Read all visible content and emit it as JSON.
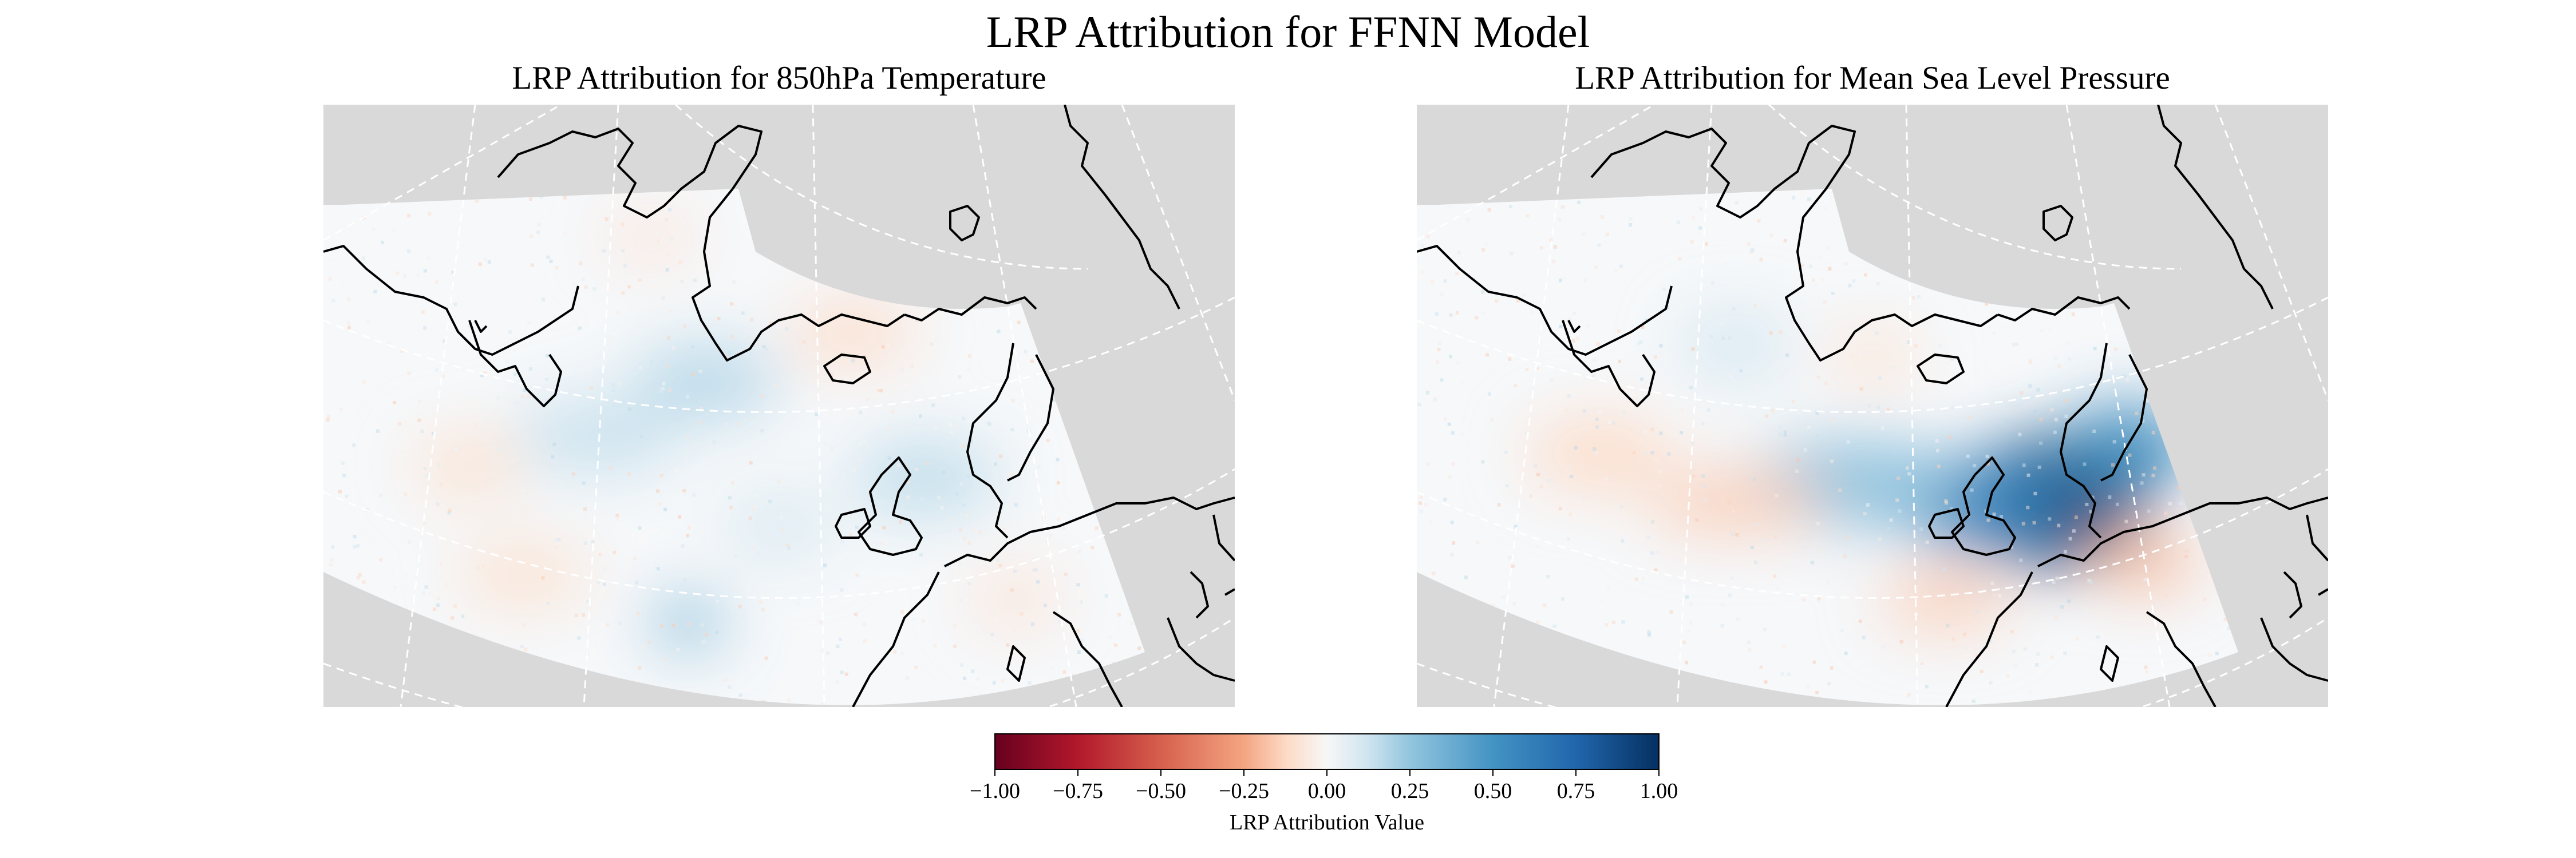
{
  "figure": {
    "title": "LRP Attribution for FFNN Model"
  },
  "panels": [
    {
      "title": "LRP Attribution for 850hPa Temperature",
      "variable": "850hPa Temperature",
      "attribution_pattern": "weak, mostly near-zero noise; faint positive patches over the North Atlantic and scattered faint negative patches",
      "blobs": [
        {
          "u": 0.42,
          "v": 0.46,
          "rx": 0.08,
          "ry": 0.06,
          "value": 0.18
        },
        {
          "u": 0.3,
          "v": 0.55,
          "rx": 0.09,
          "ry": 0.06,
          "value": 0.14
        },
        {
          "u": 0.66,
          "v": 0.62,
          "rx": 0.08,
          "ry": 0.06,
          "value": 0.16
        },
        {
          "u": 0.4,
          "v": 0.86,
          "rx": 0.04,
          "ry": 0.04,
          "value": 0.3
        },
        {
          "u": 0.58,
          "v": 0.38,
          "rx": 0.07,
          "ry": 0.05,
          "value": -0.12
        },
        {
          "u": 0.16,
          "v": 0.6,
          "rx": 0.06,
          "ry": 0.05,
          "value": -0.1
        },
        {
          "u": 0.22,
          "v": 0.78,
          "rx": 0.07,
          "ry": 0.05,
          "value": -0.1
        },
        {
          "u": 0.36,
          "v": 0.22,
          "rx": 0.05,
          "ry": 0.04,
          "value": -0.08
        },
        {
          "u": 0.5,
          "v": 0.7,
          "rx": 0.06,
          "ry": 0.05,
          "value": 0.1
        },
        {
          "u": 0.76,
          "v": 0.82,
          "rx": 0.05,
          "ry": 0.05,
          "value": -0.08
        }
      ]
    },
    {
      "title": "LRP Attribution for Mean Sea Level Pressure",
      "variable": "Mean Sea Level Pressure",
      "attribution_pattern": "strong positive attribution centred on the North Sea, southern Scandinavia and the British Isles; weak negative band over the central North Atlantic and southeast Europe",
      "blobs": [
        {
          "u": 0.7,
          "v": 0.66,
          "rx": 0.1,
          "ry": 0.11,
          "value": 0.95
        },
        {
          "u": 0.62,
          "v": 0.66,
          "rx": 0.09,
          "ry": 0.08,
          "value": 0.6
        },
        {
          "u": 0.78,
          "v": 0.57,
          "rx": 0.07,
          "ry": 0.07,
          "value": 0.55
        },
        {
          "u": 0.48,
          "v": 0.63,
          "rx": 0.12,
          "ry": 0.07,
          "value": 0.28
        },
        {
          "u": 0.35,
          "v": 0.66,
          "rx": 0.1,
          "ry": 0.05,
          "value": -0.15
        },
        {
          "u": 0.2,
          "v": 0.58,
          "rx": 0.08,
          "ry": 0.06,
          "value": -0.12
        },
        {
          "u": 0.58,
          "v": 0.82,
          "rx": 0.07,
          "ry": 0.05,
          "value": -0.15
        },
        {
          "u": 0.8,
          "v": 0.76,
          "rx": 0.06,
          "ry": 0.05,
          "value": -0.18
        },
        {
          "u": 0.35,
          "v": 0.4,
          "rx": 0.06,
          "ry": 0.05,
          "value": 0.12
        },
        {
          "u": 0.5,
          "v": 0.42,
          "rx": 0.05,
          "ry": 0.04,
          "value": -0.1
        }
      ]
    }
  ],
  "colorbar": {
    "label": "LRP Attribution Value",
    "colormap": "RdBu",
    "vmin": -1.0,
    "vmax": 1.0,
    "ticks": [
      "−1.00",
      "−0.75",
      "−0.50",
      "−0.25",
      "0.00",
      "0.25",
      "0.50",
      "0.75",
      "1.00"
    ],
    "colors": {
      "neg_strong": "#67001f",
      "neg_mid": "#d6604d",
      "neg_light": "#fddbc7",
      "neutral": "#f7f7f7",
      "pos_light": "#d1e5f0",
      "pos_mid": "#4393c3",
      "pos_strong": "#053061"
    }
  },
  "map_style": {
    "ocean_land_mask_color": "#d9d9d9",
    "coastline_color": "#000000",
    "gridline_color": "#ffffff",
    "gridline_style": "dashed"
  }
}
